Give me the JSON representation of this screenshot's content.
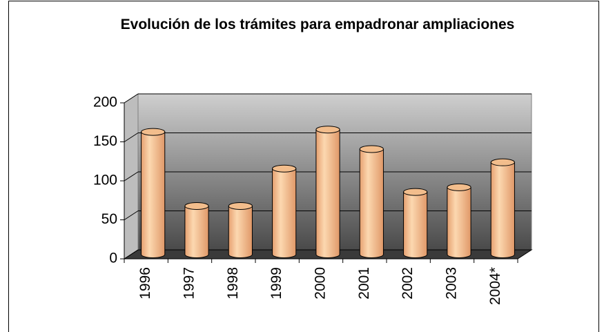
{
  "chart_data": {
    "type": "bar",
    "title": "Evolución de los trámites para empadronar ampliaciones",
    "categories": [
      "1996",
      "1997",
      "1998",
      "1999",
      "2000",
      "2001",
      "2002",
      "2003",
      "2004*"
    ],
    "values": [
      157,
      62,
      62,
      110,
      160,
      135,
      80,
      86,
      118
    ],
    "color": "#f2bd8c",
    "ylim": [
      0,
      200
    ],
    "yticks": [
      0,
      50,
      100,
      150,
      200
    ],
    "grid": true
  }
}
